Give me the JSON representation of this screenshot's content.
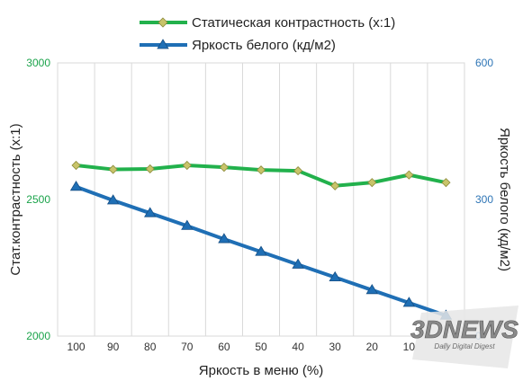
{
  "chart_data": {
    "type": "line",
    "categories": [
      "100",
      "90",
      "80",
      "70",
      "60",
      "50",
      "40",
      "30",
      "20",
      "10",
      "0"
    ],
    "xlabel": "Яркость в меню (%)",
    "ylabel_left": "Стат.контрастность  (х:1)",
    "ylabel_right": "Яркость белого (кд/м2)",
    "y_left": {
      "ticks": [
        "2000",
        "2500",
        "3000"
      ],
      "range": [
        2000,
        3000
      ],
      "color": "#1aa34a"
    },
    "y_right": {
      "ticks": [
        "0",
        "300",
        "600"
      ],
      "range": [
        0,
        600
      ],
      "color": "#2e75b6"
    },
    "grid": "vertical",
    "legend_position": "top",
    "series": [
      {
        "name": "Статическая контрастность  (х:1)",
        "axis": "left",
        "color": "#22b14c",
        "marker": "diamond",
        "marker_color": "#c8c46a",
        "values": [
          2625,
          2610,
          2612,
          2625,
          2618,
          2608,
          2605,
          2550,
          2562,
          2590,
          2562
        ]
      },
      {
        "name": "Яркость белого (кд/м2)",
        "axis": "right",
        "color": "#1f6fb5",
        "marker": "triangle",
        "marker_color": "#1f6fb5",
        "values": [
          328,
          298,
          270,
          242,
          213,
          185,
          157,
          129,
          101,
          73,
          45
        ]
      }
    ]
  },
  "watermark": {
    "brand": "3DNEWS",
    "tagline": "Daily Digital Digest"
  }
}
